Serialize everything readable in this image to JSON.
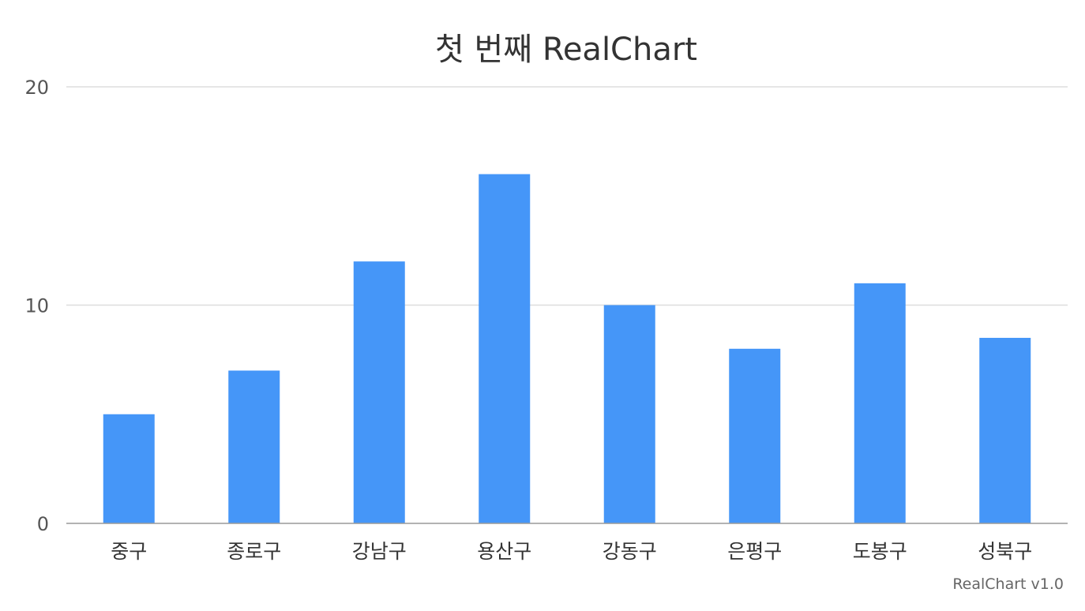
{
  "chart_data": {
    "type": "bar",
    "title": "첫 번째 RealChart",
    "xlabel": "",
    "ylabel": "",
    "categories": [
      "중구",
      "종로구",
      "강남구",
      "용산구",
      "강동구",
      "은평구",
      "도봉구",
      "성북구"
    ],
    "series": [
      {
        "values": [
          5,
          7,
          12,
          16,
          10,
          8,
          11,
          8.5
        ],
        "color": "#4596f8"
      }
    ],
    "ylim": [
      0,
      20
    ],
    "yticks": [
      0,
      10,
      20
    ],
    "grid": true,
    "legend": "none"
  },
  "credit": "RealChart v1.0"
}
